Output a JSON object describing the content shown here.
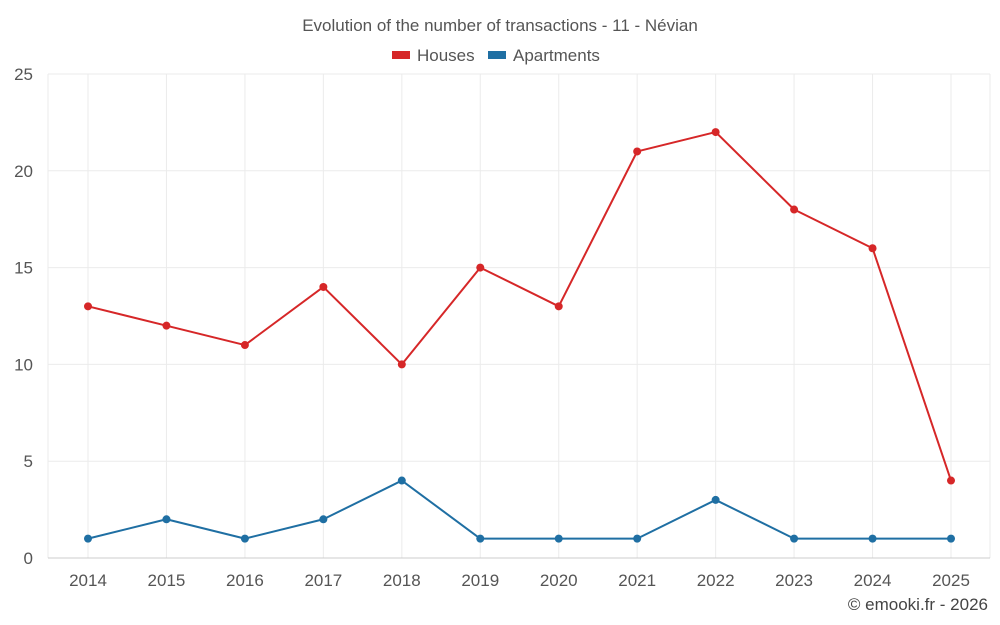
{
  "chart_data": {
    "type": "line",
    "title": "Evolution of the number of transactions - 11 - Névian",
    "categories": [
      "2014",
      "2015",
      "2016",
      "2017",
      "2018",
      "2019",
      "2020",
      "2021",
      "2022",
      "2023",
      "2024",
      "2025"
    ],
    "series": [
      {
        "name": "Houses",
        "color": "#d62728",
        "values": [
          13,
          12,
          11,
          14,
          10,
          15,
          13,
          21,
          22,
          18,
          16,
          4
        ]
      },
      {
        "name": "Apartments",
        "color": "#1f6fa3",
        "values": [
          1,
          2,
          1,
          2,
          4,
          1,
          1,
          1,
          3,
          1,
          1,
          1
        ]
      }
    ],
    "ylim": [
      0,
      25
    ],
    "yticks": [
      0,
      5,
      10,
      15,
      20,
      25
    ],
    "grid": true,
    "legend": "top-center"
  },
  "footer": {
    "copyright": "© emooki.fr - 2026"
  }
}
